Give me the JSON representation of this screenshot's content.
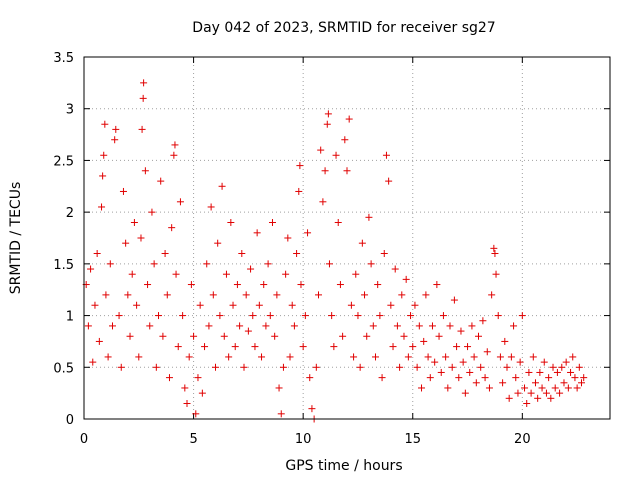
{
  "chart_data": {
    "type": "scatter",
    "title": "Day 042 of 2023, SRMTID for receiver sg27",
    "xlabel": "GPS time / hours",
    "ylabel": "SRMTID / TECUs",
    "xlim": [
      0,
      24
    ],
    "ylim": [
      0,
      3.5
    ],
    "x_ticks": [
      0,
      5,
      10,
      15,
      20
    ],
    "x_tick_labels": [
      "0",
      "5",
      "10",
      "15",
      "20"
    ],
    "y_ticks": [
      0,
      0.5,
      1,
      1.5,
      2,
      2.5,
      3,
      3.5
    ],
    "y_tick_labels": [
      "0",
      "0.5",
      "1",
      "1.5",
      "2",
      "2.5",
      "3",
      "3.5"
    ],
    "grid": true,
    "marker": "+",
    "point_color": "#e00000",
    "series": [
      {
        "name": "SRMTID",
        "points": [
          [
            0.1,
            1.3
          ],
          [
            0.2,
            0.9
          ],
          [
            0.3,
            1.45
          ],
          [
            0.4,
            0.55
          ],
          [
            0.5,
            1.1
          ],
          [
            0.6,
            1.6
          ],
          [
            0.7,
            0.75
          ],
          [
            0.8,
            2.05
          ],
          [
            0.85,
            2.35
          ],
          [
            0.9,
            2.55
          ],
          [
            0.95,
            2.85
          ],
          [
            1.0,
            1.2
          ],
          [
            1.1,
            0.6
          ],
          [
            1.2,
            1.5
          ],
          [
            1.3,
            0.9
          ],
          [
            1.4,
            2.7
          ],
          [
            1.45,
            2.8
          ],
          [
            1.6,
            1.0
          ],
          [
            1.7,
            0.5
          ],
          [
            1.8,
            2.2
          ],
          [
            1.9,
            1.7
          ],
          [
            2.0,
            1.2
          ],
          [
            2.1,
            0.8
          ],
          [
            2.2,
            1.4
          ],
          [
            2.3,
            1.9
          ],
          [
            2.4,
            1.1
          ],
          [
            2.5,
            0.6
          ],
          [
            2.6,
            1.75
          ],
          [
            2.65,
            2.8
          ],
          [
            2.7,
            3.1
          ],
          [
            2.72,
            3.25
          ],
          [
            2.8,
            2.4
          ],
          [
            2.9,
            1.3
          ],
          [
            3.0,
            0.9
          ],
          [
            3.1,
            2.0
          ],
          [
            3.2,
            1.5
          ],
          [
            3.3,
            0.5
          ],
          [
            3.4,
            1.0
          ],
          [
            3.5,
            2.3
          ],
          [
            3.6,
            0.8
          ],
          [
            3.7,
            1.6
          ],
          [
            3.8,
            1.2
          ],
          [
            3.9,
            0.4
          ],
          [
            4.0,
            1.85
          ],
          [
            4.1,
            2.55
          ],
          [
            4.15,
            2.65
          ],
          [
            4.2,
            1.4
          ],
          [
            4.3,
            0.7
          ],
          [
            4.4,
            2.1
          ],
          [
            4.5,
            1.0
          ],
          [
            4.6,
            0.3
          ],
          [
            4.7,
            0.15
          ],
          [
            4.8,
            0.6
          ],
          [
            4.9,
            1.3
          ],
          [
            5.0,
            0.8
          ],
          [
            5.1,
            0.05
          ],
          [
            5.2,
            0.4
          ],
          [
            5.3,
            1.1
          ],
          [
            5.4,
            0.25
          ],
          [
            5.5,
            0.7
          ],
          [
            5.6,
            1.5
          ],
          [
            5.7,
            0.9
          ],
          [
            5.8,
            2.05
          ],
          [
            5.9,
            1.2
          ],
          [
            6.0,
            0.5
          ],
          [
            6.1,
            1.7
          ],
          [
            6.2,
            1.0
          ],
          [
            6.3,
            2.25
          ],
          [
            6.4,
            0.8
          ],
          [
            6.5,
            1.4
          ],
          [
            6.6,
            0.6
          ],
          [
            6.7,
            1.9
          ],
          [
            6.8,
            1.1
          ],
          [
            6.9,
            0.7
          ],
          [
            7.0,
            1.3
          ],
          [
            7.1,
            0.9
          ],
          [
            7.2,
            1.6
          ],
          [
            7.3,
            0.5
          ],
          [
            7.4,
            1.2
          ],
          [
            7.5,
            0.85
          ],
          [
            7.6,
            1.45
          ],
          [
            7.7,
            1.0
          ],
          [
            7.8,
            0.7
          ],
          [
            7.9,
            1.8
          ],
          [
            8.0,
            1.1
          ],
          [
            8.1,
            0.6
          ],
          [
            8.2,
            1.3
          ],
          [
            8.3,
            0.9
          ],
          [
            8.4,
            1.5
          ],
          [
            8.5,
            1.0
          ],
          [
            8.6,
            1.9
          ],
          [
            8.7,
            0.8
          ],
          [
            8.8,
            1.2
          ],
          [
            8.9,
            0.3
          ],
          [
            9.0,
            0.05
          ],
          [
            9.1,
            0.5
          ],
          [
            9.2,
            1.4
          ],
          [
            9.3,
            1.75
          ],
          [
            9.4,
            0.6
          ],
          [
            9.5,
            1.1
          ],
          [
            9.6,
            0.9
          ],
          [
            9.7,
            1.6
          ],
          [
            9.8,
            2.2
          ],
          [
            9.85,
            2.45
          ],
          [
            9.9,
            1.3
          ],
          [
            10.0,
            0.7
          ],
          [
            10.1,
            1.0
          ],
          [
            10.2,
            1.8
          ],
          [
            10.3,
            0.4
          ],
          [
            10.4,
            0.1
          ],
          [
            10.5,
            0.0
          ],
          [
            10.6,
            0.5
          ],
          [
            10.7,
            1.2
          ],
          [
            10.8,
            2.6
          ],
          [
            10.9,
            2.1
          ],
          [
            11.0,
            2.4
          ],
          [
            11.1,
            2.85
          ],
          [
            11.15,
            2.95
          ],
          [
            11.2,
            1.5
          ],
          [
            11.3,
            1.0
          ],
          [
            11.4,
            0.7
          ],
          [
            11.5,
            2.55
          ],
          [
            11.6,
            1.9
          ],
          [
            11.7,
            1.3
          ],
          [
            11.8,
            0.8
          ],
          [
            11.9,
            2.7
          ],
          [
            12.0,
            2.4
          ],
          [
            12.1,
            2.9
          ],
          [
            12.2,
            1.1
          ],
          [
            12.3,
            0.6
          ],
          [
            12.4,
            1.4
          ],
          [
            12.5,
            1.0
          ],
          [
            12.6,
            0.5
          ],
          [
            12.7,
            1.7
          ],
          [
            12.8,
            1.2
          ],
          [
            12.9,
            0.8
          ],
          [
            13.0,
            1.95
          ],
          [
            13.1,
            1.5
          ],
          [
            13.2,
            0.9
          ],
          [
            13.3,
            0.6
          ],
          [
            13.4,
            1.3
          ],
          [
            13.5,
            1.0
          ],
          [
            13.6,
            0.4
          ],
          [
            13.7,
            1.6
          ],
          [
            13.8,
            2.55
          ],
          [
            13.9,
            2.3
          ],
          [
            14.0,
            1.1
          ],
          [
            14.1,
            0.7
          ],
          [
            14.2,
            1.45
          ],
          [
            14.3,
            0.9
          ],
          [
            14.4,
            0.5
          ],
          [
            14.5,
            1.2
          ],
          [
            14.6,
            0.8
          ],
          [
            14.7,
            1.35
          ],
          [
            14.8,
            0.6
          ],
          [
            14.9,
            1.0
          ],
          [
            15.0,
            0.7
          ],
          [
            15.1,
            1.1
          ],
          [
            15.2,
            0.5
          ],
          [
            15.3,
            0.9
          ],
          [
            15.4,
            0.3
          ],
          [
            15.5,
            0.75
          ],
          [
            15.6,
            1.2
          ],
          [
            15.7,
            0.6
          ],
          [
            15.8,
            0.4
          ],
          [
            15.9,
            0.9
          ],
          [
            16.0,
            0.55
          ],
          [
            16.1,
            1.3
          ],
          [
            16.2,
            0.8
          ],
          [
            16.3,
            0.45
          ],
          [
            16.4,
            1.0
          ],
          [
            16.5,
            0.6
          ],
          [
            16.6,
            0.3
          ],
          [
            16.7,
            0.9
          ],
          [
            16.8,
            0.5
          ],
          [
            16.9,
            1.15
          ],
          [
            17.0,
            0.7
          ],
          [
            17.1,
            0.4
          ],
          [
            17.2,
            0.85
          ],
          [
            17.3,
            0.55
          ],
          [
            17.4,
            0.25
          ],
          [
            17.5,
            0.7
          ],
          [
            17.6,
            0.45
          ],
          [
            17.7,
            0.9
          ],
          [
            17.8,
            0.6
          ],
          [
            17.9,
            0.35
          ],
          [
            18.0,
            0.8
          ],
          [
            18.1,
            0.5
          ],
          [
            18.2,
            0.95
          ],
          [
            18.3,
            0.4
          ],
          [
            18.4,
            0.65
          ],
          [
            18.5,
            0.3
          ],
          [
            18.6,
            1.2
          ],
          [
            18.7,
            1.65
          ],
          [
            18.75,
            1.6
          ],
          [
            18.8,
            1.4
          ],
          [
            18.9,
            1.0
          ],
          [
            19.0,
            0.6
          ],
          [
            19.1,
            0.35
          ],
          [
            19.2,
            0.75
          ],
          [
            19.3,
            0.5
          ],
          [
            19.4,
            0.2
          ],
          [
            19.5,
            0.6
          ],
          [
            19.6,
            0.9
          ],
          [
            19.7,
            0.4
          ],
          [
            19.8,
            0.25
          ],
          [
            19.9,
            0.55
          ],
          [
            20.0,
            1.0
          ],
          [
            20.1,
            0.3
          ],
          [
            20.2,
            0.15
          ],
          [
            20.3,
            0.45
          ],
          [
            20.4,
            0.25
          ],
          [
            20.5,
            0.6
          ],
          [
            20.6,
            0.35
          ],
          [
            20.7,
            0.2
          ],
          [
            20.8,
            0.45
          ],
          [
            20.9,
            0.3
          ],
          [
            21.0,
            0.55
          ],
          [
            21.1,
            0.25
          ],
          [
            21.2,
            0.4
          ],
          [
            21.3,
            0.2
          ],
          [
            21.4,
            0.5
          ],
          [
            21.5,
            0.3
          ],
          [
            21.6,
            0.45
          ],
          [
            21.7,
            0.25
          ],
          [
            21.8,
            0.5
          ],
          [
            21.9,
            0.35
          ],
          [
            22.0,
            0.55
          ],
          [
            22.1,
            0.3
          ],
          [
            22.2,
            0.45
          ],
          [
            22.3,
            0.6
          ],
          [
            22.4,
            0.4
          ],
          [
            22.5,
            0.3
          ],
          [
            22.6,
            0.5
          ],
          [
            22.7,
            0.35
          ],
          [
            22.8,
            0.4
          ]
        ]
      }
    ]
  }
}
